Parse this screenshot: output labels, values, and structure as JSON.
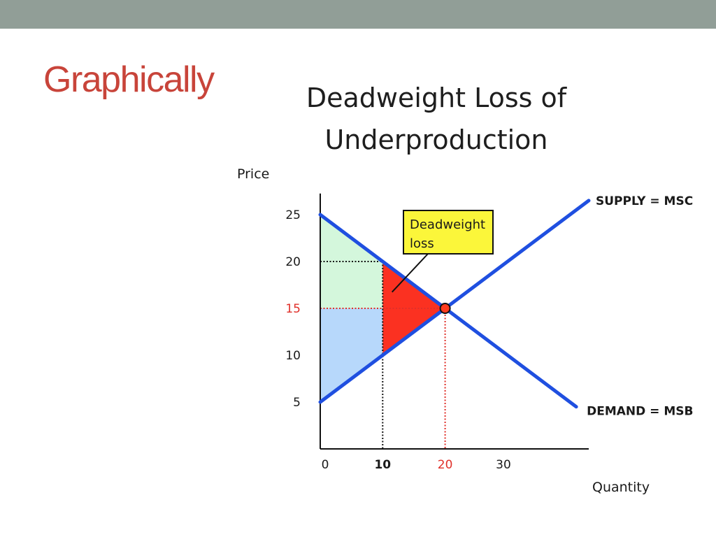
{
  "slide": {
    "title": "Graphically"
  },
  "chart_data": {
    "type": "line",
    "title": "Deadweight Loss of Underproduction",
    "title_lines": [
      "Deadweight Loss of",
      "Underproduction"
    ],
    "xlabel": "Quantity",
    "ylabel": "Price",
    "x_ticks": [
      {
        "value": 0,
        "label": "0",
        "style": "normal"
      },
      {
        "value": 10,
        "label": "10",
        "style": "bold"
      },
      {
        "value": 20,
        "label": "20",
        "style": "red"
      },
      {
        "value": 30,
        "label": "30",
        "style": "normal"
      }
    ],
    "y_ticks": [
      {
        "value": 25,
        "label": "25",
        "style": "normal"
      },
      {
        "value": 20,
        "label": "20",
        "style": "normal"
      },
      {
        "value": 15,
        "label": "15",
        "style": "red"
      },
      {
        "value": 10,
        "label": "10",
        "style": "normal"
      },
      {
        "value": 5,
        "label": "5",
        "style": "normal"
      }
    ],
    "series": [
      {
        "name": "SUPPLY = MSC",
        "color": "#1f4fe0",
        "x": [
          0,
          43
        ],
        "y": [
          5,
          26.5
        ]
      },
      {
        "name": "DEMAND = MSB",
        "color": "#1f4fe0",
        "x": [
          0,
          41
        ],
        "y": [
          25,
          4.5
        ]
      }
    ],
    "equilibrium": {
      "x": 20,
      "y": 15,
      "color": "#ff3b1f"
    },
    "regions": [
      {
        "name": "consumer-surplus",
        "color": "#d4f7dc",
        "points": [
          [
            0,
            25
          ],
          [
            10,
            20
          ],
          [
            0,
            20
          ]
        ]
      },
      {
        "name": "consumer-surplus",
        "color": "#d4f7dc",
        "points": [
          [
            0,
            20
          ],
          [
            10,
            20
          ],
          [
            10,
            15
          ],
          [
            0,
            15
          ]
        ]
      },
      {
        "name": "producer-surplus",
        "color": "#b7d8fb",
        "points": [
          [
            0,
            15
          ],
          [
            10,
            15
          ],
          [
            10,
            10
          ],
          [
            0,
            5
          ]
        ]
      },
      {
        "name": "deadweight-loss",
        "color": "#fb3121",
        "points": [
          [
            10,
            20
          ],
          [
            20,
            15
          ],
          [
            10,
            10
          ]
        ]
      }
    ],
    "guides": [
      {
        "from": [
          0,
          20
        ],
        "to": [
          10,
          20
        ],
        "color": "#111111"
      },
      {
        "from": [
          10,
          20
        ],
        "to": [
          10,
          0
        ],
        "color": "#111111"
      },
      {
        "from": [
          0,
          15
        ],
        "to": [
          20,
          15
        ],
        "color": "#e0302a"
      },
      {
        "from": [
          20,
          15
        ],
        "to": [
          20,
          0
        ],
        "color": "#e0302a"
      }
    ],
    "annotation": {
      "text_lines": [
        "Deadweight",
        "loss"
      ],
      "background": "#fbf63a",
      "points_to": [
        11.5,
        14.5
      ]
    },
    "xlim": [
      0,
      43
    ],
    "ylim": [
      0,
      28
    ]
  }
}
